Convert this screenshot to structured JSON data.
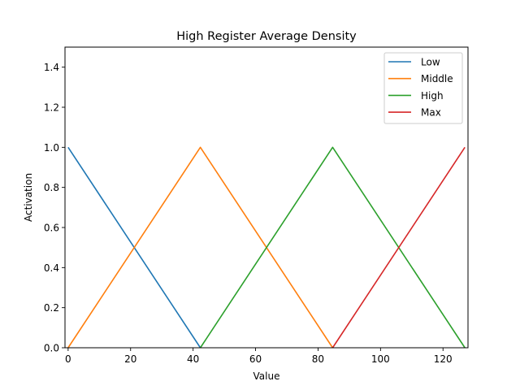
{
  "chart_data": {
    "type": "line",
    "title": "High Register Average Density",
    "xlabel": "Value",
    "ylabel": "Activation",
    "xlim": [
      -1,
      128
    ],
    "ylim": [
      0,
      1.5
    ],
    "xticks": [
      0,
      20,
      40,
      60,
      80,
      100,
      120
    ],
    "xtick_labels": [
      "0",
      "20",
      "40",
      "60",
      "80",
      "100",
      "120"
    ],
    "yticks": [
      0.0,
      0.2,
      0.4,
      0.6,
      0.8,
      1.0,
      1.2,
      1.4
    ],
    "ytick_labels": [
      "0.0",
      "0.2",
      "0.4",
      "0.6",
      "0.8",
      "1.0",
      "1.2",
      "1.4"
    ],
    "grid": false,
    "legend_position": "top-right",
    "series": [
      {
        "name": "Low",
        "color": "#1f77b4",
        "x": [
          0,
          42.33
        ],
        "y": [
          1,
          0
        ]
      },
      {
        "name": "Middle",
        "color": "#ff7f0e",
        "x": [
          0,
          42.33,
          84.67
        ],
        "y": [
          0,
          1,
          0
        ]
      },
      {
        "name": "High",
        "color": "#2ca02c",
        "x": [
          42.33,
          84.67,
          127
        ],
        "y": [
          0,
          1,
          0
        ]
      },
      {
        "name": "Max",
        "color": "#d62728",
        "x": [
          84.67,
          127
        ],
        "y": [
          0,
          1
        ]
      }
    ]
  }
}
